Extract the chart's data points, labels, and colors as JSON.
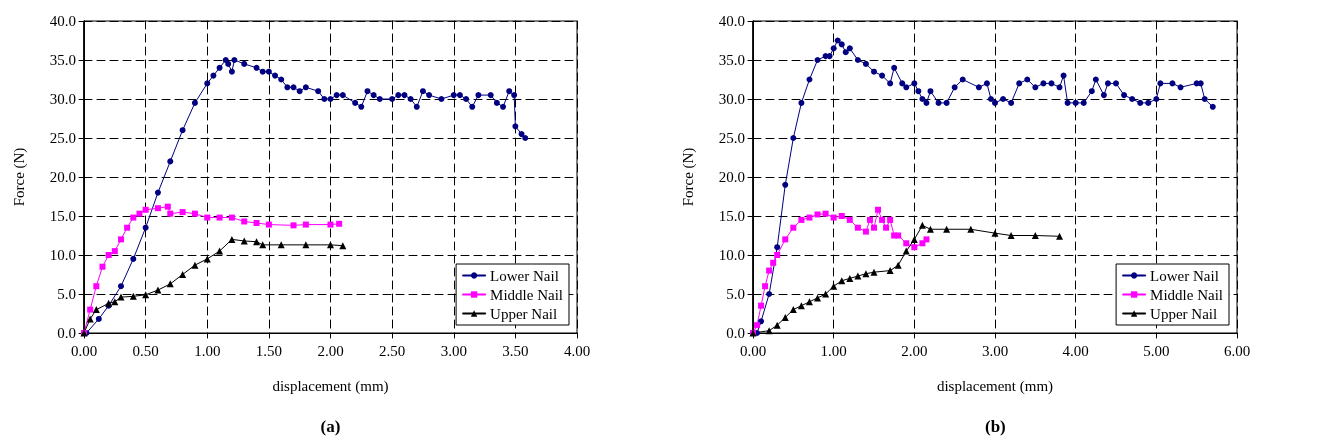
{
  "chart_data": [
    {
      "type": "line",
      "xlabel": "displacement (mm)",
      "ylabel": "Force (N)",
      "annotations": [
        "(a)"
      ],
      "xlim": [
        0,
        4
      ],
      "xticks": [
        {
          "value": 0,
          "label": "0.00"
        },
        {
          "value": 0.5,
          "label": "0.50"
        },
        {
          "value": 1,
          "label": "1.00"
        },
        {
          "value": 1.5,
          "label": "1.50"
        },
        {
          "value": 2,
          "label": "2.00"
        },
        {
          "value": 2.5,
          "label": "2.50"
        },
        {
          "value": 3,
          "label": "3.00"
        },
        {
          "value": 3.5,
          "label": "3.50"
        },
        {
          "value": 4,
          "label": "4.00"
        }
      ],
      "ylim": [
        0,
        40
      ],
      "yticks": [
        {
          "value": 0,
          "label": "0.0"
        },
        {
          "value": 5,
          "label": "5.0"
        },
        {
          "value": 10,
          "label": "10.0"
        },
        {
          "value": 15,
          "label": "15.0"
        },
        {
          "value": 20,
          "label": "20.0"
        },
        {
          "value": 25,
          "label": "25.0"
        },
        {
          "value": 30,
          "label": "30.0"
        },
        {
          "value": 35,
          "label": "35.0"
        },
        {
          "value": 40,
          "label": "40.0"
        }
      ],
      "grid": true,
      "legend": "bottom right",
      "line_style": "solid",
      "series": [
        {
          "name": "Lower Nail",
          "color": "#000080",
          "marker": "circle",
          "x": [
            0.02,
            0.12,
            0.2,
            0.3,
            0.4,
            0.5,
            0.6,
            0.7,
            0.8,
            0.9,
            1.0,
            1.05,
            1.1,
            1.15,
            1.17,
            1.2,
            1.22,
            1.3,
            1.4,
            1.45,
            1.5,
            1.55,
            1.6,
            1.65,
            1.7,
            1.75,
            1.8,
            1.9,
            1.95,
            2.0,
            2.05,
            2.1,
            2.2,
            2.25,
            2.3,
            2.35,
            2.4,
            2.5,
            2.55,
            2.6,
            2.65,
            2.7,
            2.75,
            2.8,
            2.9,
            3.0,
            3.05,
            3.1,
            3.15,
            3.2,
            3.3,
            3.35,
            3.4,
            3.45,
            3.49,
            3.5,
            3.55,
            3.58
          ],
          "values": [
            0,
            1.8,
            3.5,
            6,
            9.5,
            13.5,
            18,
            22,
            26,
            29.5,
            32,
            33,
            34,
            35,
            34.5,
            33.5,
            35,
            34.5,
            34,
            33.5,
            33.5,
            33,
            32.5,
            31.5,
            31.5,
            31,
            31.5,
            31,
            30,
            30,
            30.5,
            30.5,
            29.5,
            29,
            31,
            30.5,
            30,
            30,
            30.5,
            30.5,
            30,
            29,
            31,
            30.5,
            30,
            30.5,
            30.5,
            30,
            29,
            30.5,
            30.5,
            29.5,
            29,
            31,
            30.5,
            26.5,
            25.5,
            25
          ]
        },
        {
          "name": "Middle Nail",
          "color": "#ff00ff",
          "marker": "square",
          "x": [
            0,
            0.05,
            0.1,
            0.15,
            0.2,
            0.25,
            0.3,
            0.35,
            0.4,
            0.45,
            0.5,
            0.6,
            0.68,
            0.7,
            0.8,
            0.9,
            1.0,
            1.1,
            1.2,
            1.3,
            1.4,
            1.5,
            1.7,
            1.8,
            2.0,
            2.07
          ],
          "values": [
            0,
            3,
            6,
            8.5,
            10,
            10.5,
            12,
            13.5,
            14.8,
            15.3,
            15.8,
            16,
            16.2,
            15.3,
            15.5,
            15.3,
            14.8,
            14.8,
            14.8,
            14.3,
            14.1,
            13.9,
            13.8,
            13.9,
            13.9,
            14
          ]
        },
        {
          "name": "Upper Nail",
          "color": "#000000",
          "marker": "triangle",
          "x": [
            0,
            0.05,
            0.1,
            0.2,
            0.25,
            0.3,
            0.4,
            0.5,
            0.6,
            0.7,
            0.8,
            0.9,
            1.0,
            1.1,
            1.2,
            1.3,
            1.4,
            1.45,
            1.6,
            1.8,
            2.0,
            2.1
          ],
          "values": [
            0,
            1.8,
            3,
            3.8,
            4,
            4.6,
            4.7,
            4.9,
            5.5,
            6.3,
            7.5,
            8.7,
            9.5,
            10.5,
            12,
            11.8,
            11.7,
            11.3,
            11.3,
            11.3,
            11.3,
            11.2
          ]
        }
      ]
    },
    {
      "type": "line",
      "xlabel": "displacement (mm)",
      "ylabel": "Force (N)",
      "annotations": [
        "(b)"
      ],
      "xlim": [
        0,
        6
      ],
      "xticks": [
        {
          "value": 0,
          "label": "0.00"
        },
        {
          "value": 1,
          "label": "1.00"
        },
        {
          "value": 2,
          "label": "2.00"
        },
        {
          "value": 3,
          "label": "3.00"
        },
        {
          "value": 4,
          "label": "4.00"
        },
        {
          "value": 5,
          "label": "5.00"
        },
        {
          "value": 6,
          "label": "6.00"
        }
      ],
      "ylim": [
        0,
        40
      ],
      "yticks": [
        {
          "value": 0,
          "label": "0.0"
        },
        {
          "value": 5,
          "label": "5.0"
        },
        {
          "value": 10,
          "label": "10.0"
        },
        {
          "value": 15,
          "label": "15.0"
        },
        {
          "value": 20,
          "label": "20.0"
        },
        {
          "value": 25,
          "label": "25.0"
        },
        {
          "value": 30,
          "label": "30.0"
        },
        {
          "value": 35,
          "label": "35.0"
        },
        {
          "value": 40,
          "label": "40.0"
        }
      ],
      "grid": true,
      "legend": "bottom right",
      "line_style": "solid",
      "series": [
        {
          "name": "Lower Nail",
          "color": "#000080",
          "marker": "circle",
          "x": [
            0.05,
            0.1,
            0.2,
            0.3,
            0.4,
            0.5,
            0.6,
            0.7,
            0.8,
            0.9,
            0.95,
            1.0,
            1.05,
            1.1,
            1.15,
            1.2,
            1.3,
            1.4,
            1.5,
            1.6,
            1.7,
            1.75,
            1.85,
            1.9,
            2.0,
            2.05,
            2.1,
            2.15,
            2.2,
            2.3,
            2.4,
            2.5,
            2.6,
            2.8,
            2.9,
            2.95,
            3.0,
            3.1,
            3.2,
            3.3,
            3.4,
            3.5,
            3.6,
            3.7,
            3.8,
            3.85,
            3.9,
            4.0,
            4.1,
            4.2,
            4.25,
            4.35,
            4.4,
            4.5,
            4.6,
            4.7,
            4.8,
            4.9,
            5.0,
            5.05,
            5.2,
            5.3,
            5.5,
            5.55,
            5.6,
            5.7
          ],
          "values": [
            0,
            1.5,
            5,
            11,
            19,
            25,
            29.5,
            32.5,
            35,
            35.5,
            35.5,
            36.5,
            37.5,
            37,
            36,
            36.5,
            35,
            34.5,
            33.5,
            33,
            32,
            34,
            32,
            31.5,
            32,
            31,
            30,
            29.5,
            31,
            29.5,
            29.5,
            31.5,
            32.5,
            31.5,
            32,
            30,
            29.5,
            30,
            29.5,
            32,
            32.5,
            31.5,
            32,
            32,
            31.5,
            33,
            29.5,
            29.5,
            29.5,
            31,
            32.5,
            30.5,
            32,
            32,
            30.5,
            30,
            29.5,
            29.5,
            30,
            32,
            32,
            31.5,
            32,
            32,
            30,
            29
          ]
        },
        {
          "name": "Middle Nail",
          "color": "#ff00ff",
          "marker": "square",
          "x": [
            0,
            0.05,
            0.1,
            0.15,
            0.2,
            0.25,
            0.3,
            0.4,
            0.5,
            0.6,
            0.7,
            0.8,
            0.9,
            1.0,
            1.1,
            1.2,
            1.3,
            1.4,
            1.45,
            1.5,
            1.55,
            1.6,
            1.65,
            1.7,
            1.75,
            1.8,
            1.9,
            2.0,
            2.1,
            2.15
          ],
          "values": [
            0,
            1,
            3.5,
            6,
            8,
            9,
            10,
            12,
            13.5,
            14.5,
            14.8,
            15.2,
            15.3,
            14.8,
            15,
            14.5,
            13.5,
            13,
            14.5,
            13.5,
            15.8,
            14.5,
            13.5,
            14.5,
            12.5,
            12.5,
            11.5,
            11,
            11.5,
            12
          ]
        },
        {
          "name": "Upper Nail",
          "color": "#000000",
          "marker": "triangle",
          "x": [
            0,
            0.2,
            0.3,
            0.4,
            0.5,
            0.6,
            0.7,
            0.8,
            0.9,
            1.0,
            1.1,
            1.2,
            1.3,
            1.4,
            1.5,
            1.7,
            1.8,
            1.9,
            2.0,
            2.1,
            2.2,
            2.4,
            2.7,
            3.0,
            3.2,
            3.5,
            3.8
          ],
          "values": [
            0,
            0.3,
            1,
            2,
            3,
            3.5,
            4,
            4.5,
            5,
            6,
            6.7,
            7,
            7.3,
            7.6,
            7.8,
            8,
            8.7,
            10.5,
            12,
            13.8,
            13.3,
            13.3,
            13.3,
            12.8,
            12.5,
            12.5,
            12.4
          ]
        }
      ]
    }
  ]
}
